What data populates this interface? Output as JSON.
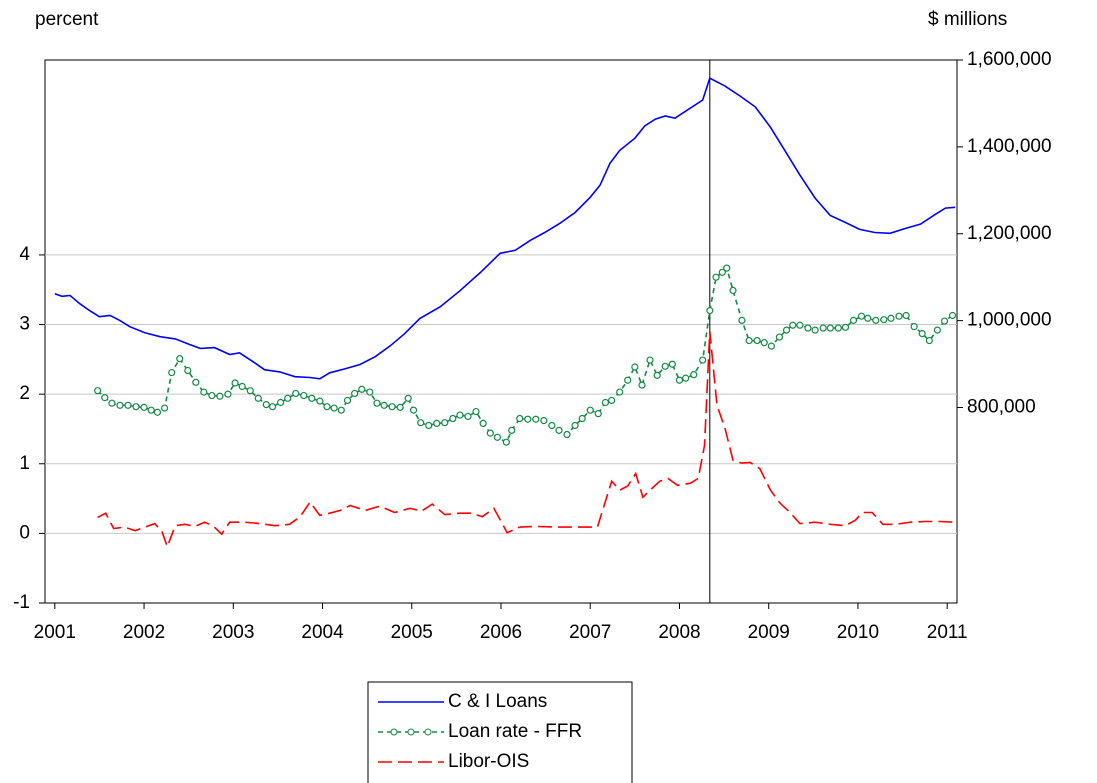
{
  "chart_data": {
    "type": "line",
    "y_label": "percent",
    "y2_label": "$ millions",
    "xlim": [
      2000.89,
      2011.11
    ],
    "xticks": [
      2001,
      2002,
      2003,
      2004,
      2005,
      2006,
      2007,
      2008,
      2009,
      2010,
      2011
    ],
    "ylim": [
      -1,
      6.8
    ],
    "yticks": [
      -1,
      0,
      1,
      2,
      3,
      4
    ],
    "y2lim": [
      350000,
      1600000
    ],
    "y2ticks": [
      {
        "value": 800000,
        "label": "800,000"
      },
      {
        "value": 1000000,
        "label": "1,000,000"
      },
      {
        "value": 1200000,
        "label": "1,200,000"
      },
      {
        "value": 1400000,
        "label": "1,400,000"
      },
      {
        "value": 1600000,
        "label": "1,600,000"
      }
    ],
    "grid": true,
    "legend": "bottom",
    "vline_x": 2008.34,
    "series": [
      {
        "name": "C & I Loans",
        "color": "#0000ff",
        "axis": "y2",
        "dash": "solid",
        "marker": "none",
        "x": [
          2001.0,
          2001.08,
          2001.17,
          2001.28,
          2001.39,
          2001.5,
          2001.62,
          2001.73,
          2001.84,
          2002.01,
          2002.18,
          2002.35,
          2002.51,
          2002.63,
          2002.79,
          2002.96,
          2003.07,
          2003.24,
          2003.35,
          2003.52,
          2003.69,
          2003.86,
          2003.97,
          2004.08,
          2004.25,
          2004.42,
          2004.59,
          2004.76,
          2004.92,
          2005.09,
          2005.32,
          2005.54,
          2005.77,
          2005.99,
          2006.16,
          2006.33,
          2006.49,
          2006.66,
          2006.83,
          2007.0,
          2007.11,
          2007.22,
          2007.33,
          2007.5,
          2007.61,
          2007.73,
          2007.84,
          2007.95,
          2008.12,
          2008.26,
          2008.34,
          2008.51,
          2008.68,
          2008.85,
          2009.02,
          2009.18,
          2009.35,
          2009.52,
          2009.69,
          2009.86,
          2010.02,
          2010.19,
          2010.36,
          2010.53,
          2010.7,
          2010.87,
          2010.98,
          2011.09
        ],
        "values": [
          1062000,
          1056000,
          1058000,
          1039000,
          1023000,
          1009000,
          1012000,
          1000000,
          986000,
          972000,
          963000,
          958000,
          945000,
          936000,
          938000,
          922000,
          926000,
          903000,
          887000,
          882000,
          871000,
          869000,
          866000,
          880000,
          889000,
          899000,
          917000,
          942000,
          970000,
          1005000,
          1032000,
          1069000,
          1111000,
          1155000,
          1162000,
          1185000,
          1203000,
          1224000,
          1249000,
          1284000,
          1312000,
          1362000,
          1392000,
          1420000,
          1448000,
          1464000,
          1471000,
          1466000,
          1489000,
          1508000,
          1558000,
          1540000,
          1517000,
          1492000,
          1445000,
          1392000,
          1335000,
          1282000,
          1242000,
          1226000,
          1210000,
          1203000,
          1201000,
          1212000,
          1222000,
          1245000,
          1259000,
          1261000
        ]
      },
      {
        "name": "Loan rate - FFR",
        "color": "#138a44",
        "axis": "y",
        "dash": "dashed",
        "marker": "circle",
        "x": [
          2001.48,
          2001.56,
          2001.64,
          2001.73,
          2001.82,
          2001.91,
          2002.0,
          2002.08,
          2002.15,
          2002.23,
          2002.31,
          2002.4,
          2002.49,
          2002.58,
          2002.67,
          2002.76,
          2002.85,
          2002.94,
          2003.02,
          2003.1,
          2003.19,
          2003.28,
          2003.37,
          2003.44,
          2003.53,
          2003.61,
          2003.7,
          2003.79,
          2003.88,
          2003.97,
          2004.05,
          2004.13,
          2004.21,
          2004.28,
          2004.36,
          2004.44,
          2004.53,
          2004.61,
          2004.69,
          2004.78,
          2004.87,
          2004.96,
          2005.02,
          2005.1,
          2005.19,
          2005.28,
          2005.37,
          2005.46,
          2005.54,
          2005.63,
          2005.72,
          2005.8,
          2005.88,
          2005.96,
          2006.06,
          2006.12,
          2006.21,
          2006.3,
          2006.39,
          2006.48,
          2006.57,
          2006.65,
          2006.74,
          2006.83,
          2006.91,
          2007.0,
          2007.09,
          2007.17,
          2007.24,
          2007.33,
          2007.42,
          2007.5,
          2007.58,
          2007.67,
          2007.75,
          2007.84,
          2007.92,
          2008.0,
          2008.07,
          2008.16,
          2008.26,
          2008.34,
          2008.41,
          2008.48,
          2008.53,
          2008.6,
          2008.7,
          2008.78,
          2008.87,
          2008.95,
          2009.03,
          2009.12,
          2009.2,
          2009.27,
          2009.35,
          2009.44,
          2009.52,
          2009.61,
          2009.69,
          2009.78,
          2009.86,
          2009.95,
          2010.04,
          2010.11,
          2010.2,
          2010.29,
          2010.37,
          2010.46,
          2010.54,
          2010.63,
          2010.72,
          2010.8,
          2010.89,
          2010.97,
          2011.06
        ],
        "values": [
          2.05,
          1.95,
          1.87,
          1.84,
          1.84,
          1.82,
          1.81,
          1.77,
          1.74,
          1.8,
          2.31,
          2.51,
          2.34,
          2.17,
          2.03,
          1.98,
          1.97,
          2.0,
          2.16,
          2.11,
          2.05,
          1.94,
          1.85,
          1.82,
          1.88,
          1.94,
          2.01,
          1.98,
          1.94,
          1.9,
          1.82,
          1.8,
          1.77,
          1.91,
          2.01,
          2.07,
          2.03,
          1.87,
          1.84,
          1.82,
          1.81,
          1.94,
          1.77,
          1.59,
          1.55,
          1.58,
          1.59,
          1.65,
          1.7,
          1.68,
          1.75,
          1.58,
          1.44,
          1.38,
          1.31,
          1.48,
          1.65,
          1.64,
          1.64,
          1.62,
          1.55,
          1.48,
          1.42,
          1.55,
          1.65,
          1.77,
          1.72,
          1.88,
          1.91,
          2.03,
          2.2,
          2.39,
          2.13,
          2.49,
          2.27,
          2.4,
          2.43,
          2.2,
          2.23,
          2.28,
          2.49,
          3.2,
          3.68,
          3.75,
          3.81,
          3.49,
          3.06,
          2.77,
          2.77,
          2.74,
          2.69,
          2.82,
          2.92,
          2.99,
          2.99,
          2.95,
          2.92,
          2.95,
          2.95,
          2.95,
          2.96,
          3.06,
          3.12,
          3.09,
          3.06,
          3.07,
          3.09,
          3.12,
          3.13,
          2.97,
          2.87,
          2.77,
          2.92,
          3.05,
          3.13
        ]
      },
      {
        "name": "Libor-OIS",
        "color": "#ff0000",
        "axis": "y",
        "dash": "longdash",
        "marker": "none",
        "x": [
          2001.48,
          2001.57,
          2001.66,
          2001.78,
          2001.9,
          2002.01,
          2002.12,
          2002.2,
          2002.26,
          2002.35,
          2002.46,
          2002.57,
          2002.68,
          2002.77,
          2002.87,
          2002.96,
          2003.13,
          2003.3,
          2003.47,
          2003.63,
          2003.75,
          2003.86,
          2003.97,
          2004.08,
          2004.2,
          2004.31,
          2004.48,
          2004.64,
          2004.81,
          2004.98,
          2005.11,
          2005.23,
          2005.37,
          2005.54,
          2005.67,
          2005.79,
          2005.92,
          2006.07,
          2006.21,
          2006.38,
          2006.61,
          2006.83,
          2007.08,
          2007.17,
          2007.24,
          2007.33,
          2007.42,
          2007.51,
          2007.59,
          2007.67,
          2007.78,
          2007.87,
          2007.98,
          2008.12,
          2008.21,
          2008.28,
          2008.34,
          2008.42,
          2008.51,
          2008.6,
          2008.7,
          2008.79,
          2008.9,
          2009.02,
          2009.13,
          2009.24,
          2009.35,
          2009.52,
          2009.69,
          2009.86,
          2009.97,
          2010.05,
          2010.16,
          2010.28,
          2010.42,
          2010.59,
          2010.75,
          2010.92,
          2011.09
        ],
        "values": [
          0.23,
          0.29,
          0.07,
          0.09,
          0.04,
          0.09,
          0.14,
          0.03,
          -0.19,
          0.11,
          0.13,
          0.1,
          0.16,
          0.11,
          -0.01,
          0.16,
          0.16,
          0.14,
          0.11,
          0.13,
          0.24,
          0.45,
          0.26,
          0.29,
          0.33,
          0.4,
          0.33,
          0.39,
          0.3,
          0.36,
          0.32,
          0.42,
          0.27,
          0.29,
          0.29,
          0.24,
          0.36,
          0.01,
          0.09,
          0.1,
          0.09,
          0.09,
          0.09,
          0.46,
          0.75,
          0.62,
          0.68,
          0.86,
          0.52,
          0.62,
          0.75,
          0.79,
          0.69,
          0.72,
          0.79,
          1.26,
          2.9,
          1.84,
          1.51,
          1.05,
          1.01,
          1.02,
          0.93,
          0.62,
          0.43,
          0.3,
          0.14,
          0.16,
          0.13,
          0.11,
          0.19,
          0.3,
          0.3,
          0.13,
          0.13,
          0.16,
          0.17,
          0.17,
          0.16
        ]
      }
    ]
  }
}
